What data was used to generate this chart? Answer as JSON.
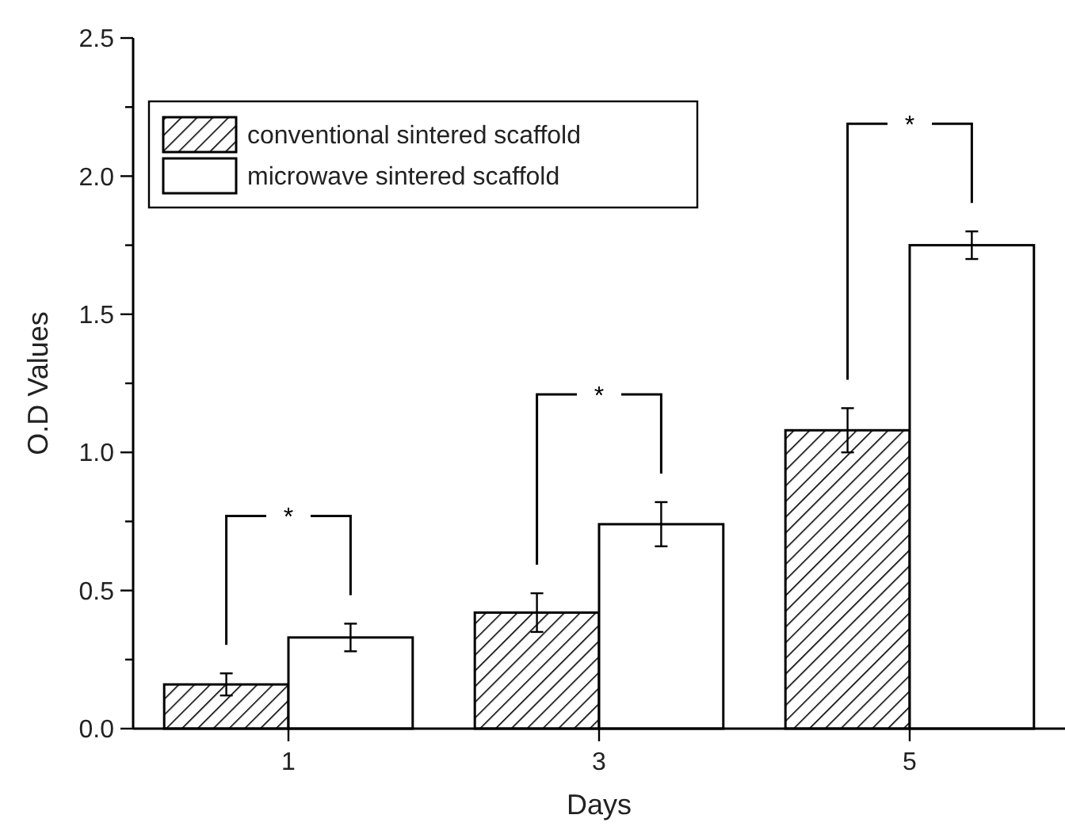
{
  "chart_data": {
    "type": "bar",
    "xlabel": "Days",
    "ylabel": "O.D Values",
    "categories": [
      "1",
      "3",
      "5"
    ],
    "series": [
      {
        "name": "conventional sintered scaffold",
        "color": "#000000",
        "values": [
          0.16,
          0.42,
          1.08
        ],
        "errors": [
          0.04,
          0.07,
          0.08
        ]
      },
      {
        "name": "microwave sintered scaffold",
        "color": "#ffffff",
        "values": [
          0.33,
          0.74,
          1.75
        ],
        "errors": [
          0.05,
          0.08,
          0.05
        ]
      }
    ],
    "ylim": [
      0,
      2.5
    ],
    "yticks": [
      {
        "value": 0,
        "label": "0.0"
      },
      {
        "value": 0.25,
        "label": null
      },
      {
        "value": 0.5,
        "label": "0.5"
      },
      {
        "value": 0.75,
        "label": null
      },
      {
        "value": 1,
        "label": "1.0"
      },
      {
        "value": 1.25,
        "label": null
      },
      {
        "value": 1.5,
        "label": "1.5"
      },
      {
        "value": 1.75,
        "label": null
      },
      {
        "value": 2,
        "label": "2.0"
      },
      {
        "value": 2.25,
        "label": null
      },
      {
        "value": 2.5,
        "label": "2.5"
      }
    ],
    "annotations": [
      "*",
      "*",
      "*"
    ],
    "legend": "top left",
    "grid": false
  }
}
